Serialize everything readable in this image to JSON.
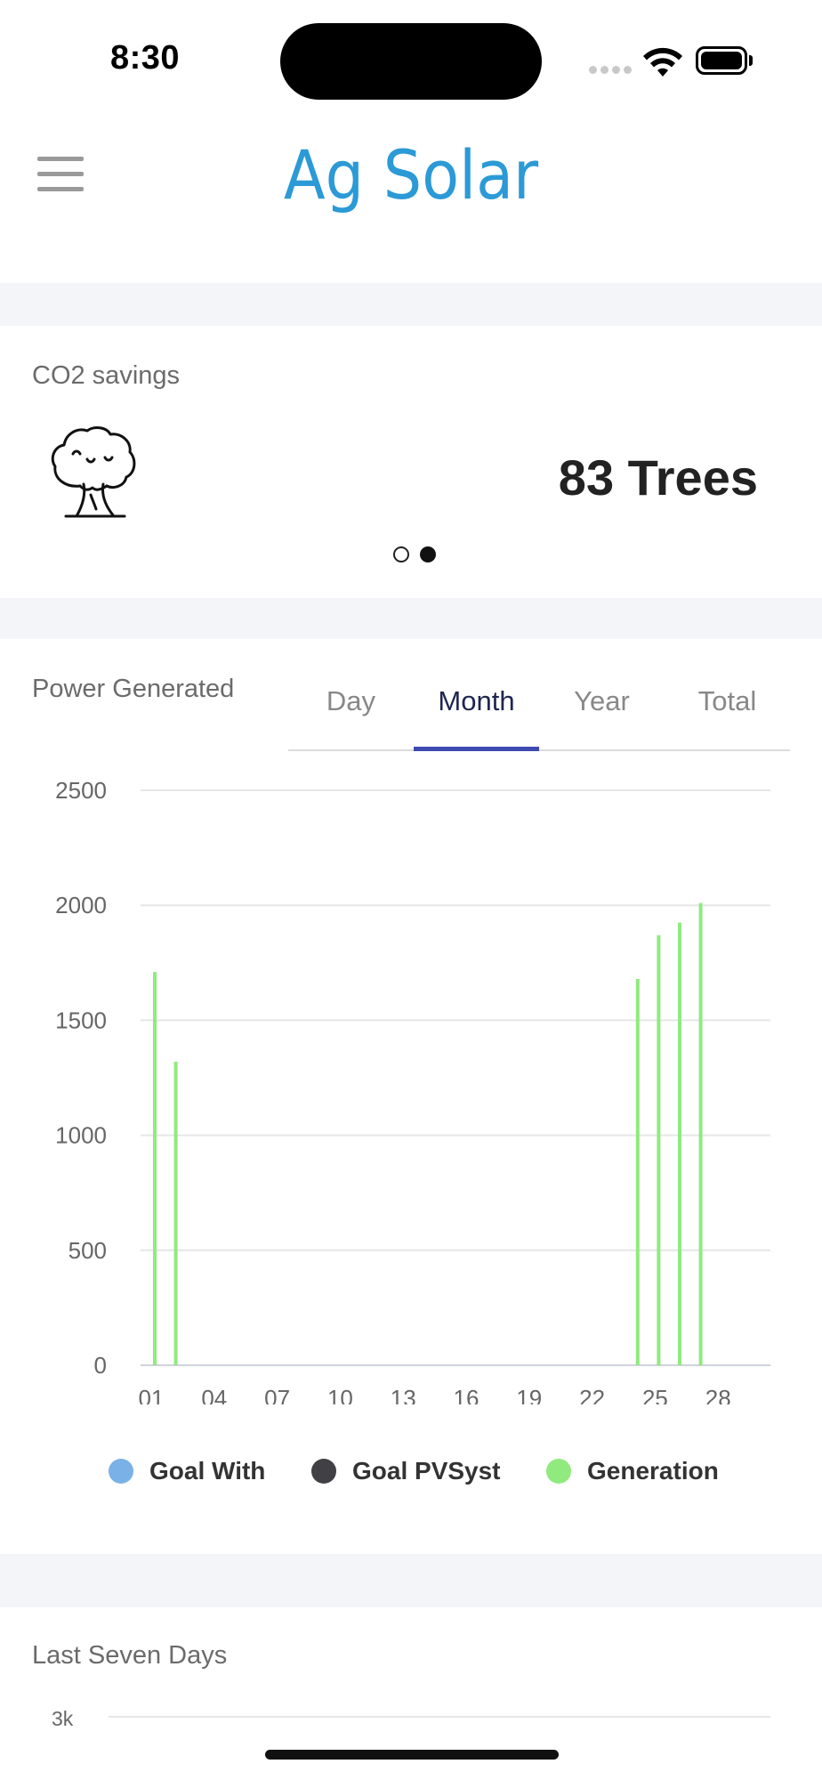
{
  "status_bar": {
    "time": "8:30"
  },
  "header": {
    "title": "Ag Solar",
    "menu_icon": "hamburger-menu-icon"
  },
  "co2": {
    "title": "CO2 savings",
    "value": "83 Trees",
    "icon": "tree-icon",
    "carousel": {
      "pages": 2,
      "active": 2
    }
  },
  "power": {
    "title": "Power Generated",
    "tabs": [
      {
        "label": "Day"
      },
      {
        "label": "Month"
      },
      {
        "label": "Year"
      },
      {
        "label": "Total"
      }
    ],
    "active_tab": "Month",
    "legend": [
      {
        "label": "Goal With",
        "color": "#7ab1e6"
      },
      {
        "label": "Goal PVSyst",
        "color": "#404045"
      },
      {
        "label": "Generation",
        "color": "#90ea7e"
      }
    ]
  },
  "chart_data": {
    "type": "bar",
    "title": "",
    "xlabel": "",
    "ylabel": "",
    "ylim": [
      0,
      2500
    ],
    "yticks": [
      "2500",
      "2000",
      "1500",
      "1000",
      "500",
      "0"
    ],
    "xticks": [
      "01",
      "04",
      "07",
      "10",
      "13",
      "16",
      "19",
      "22",
      "25",
      "28"
    ],
    "categories": [
      "01",
      "02",
      "03",
      "04",
      "05",
      "06",
      "07",
      "08",
      "09",
      "10",
      "11",
      "12",
      "13",
      "14",
      "15",
      "16",
      "17",
      "18",
      "19",
      "20",
      "21",
      "22",
      "23",
      "24",
      "25",
      "26",
      "27",
      "28",
      "29",
      "30",
      "31"
    ],
    "series": [
      {
        "name": "Generation",
        "color": "#90ea7e",
        "values": [
          1710,
          1320,
          0,
          0,
          0,
          0,
          0,
          0,
          0,
          0,
          0,
          0,
          0,
          0,
          0,
          0,
          0,
          0,
          0,
          0,
          0,
          0,
          0,
          1680,
          1870,
          1925,
          2010,
          0,
          0,
          0,
          0
        ]
      }
    ],
    "grid": true
  },
  "seven_days": {
    "title": "Last Seven Days",
    "first_tick": "3k"
  }
}
